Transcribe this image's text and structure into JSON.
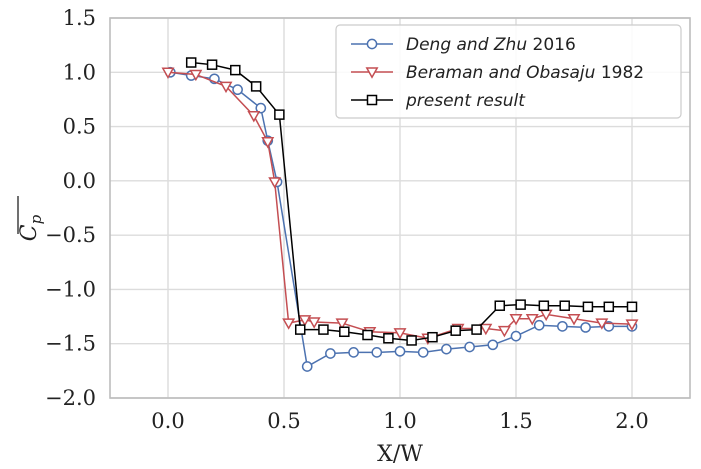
{
  "chart_data": {
    "type": "line",
    "xlabel": "X/W",
    "ylabel_base": "C",
    "ylabel_sub": "p",
    "xlim": [
      -0.25,
      2.25
    ],
    "ylim": [
      -2.0,
      1.5
    ],
    "xticks": [
      0.0,
      0.5,
      1.0,
      1.5,
      2.0
    ],
    "xtick_labels": [
      "0.0",
      "0.5",
      "1.0",
      "1.5",
      "2.0"
    ],
    "yticks": [
      1.5,
      1.0,
      0.5,
      0.0,
      -0.5,
      -1.0,
      -1.5,
      -2.0
    ],
    "ytick_labels": [
      "1.5",
      "1.0",
      "0.5",
      "0.0",
      "−0.5",
      "−1.0",
      "−1.5",
      "−2.0"
    ],
    "grid": true,
    "legend_position": "top-right",
    "series": [
      {
        "legend_italic": "Deng and Zhu",
        "legend_plain": " 2016",
        "color": "#4c72b0",
        "marker": "circle",
        "x": [
          0.01,
          0.1,
          0.2,
          0.3,
          0.4,
          0.43,
          0.47,
          0.6,
          0.7,
          0.8,
          0.9,
          1.0,
          1.1,
          1.2,
          1.3,
          1.4,
          1.5,
          1.6,
          1.7,
          1.8,
          1.9,
          2.0
        ],
        "y": [
          1.0,
          0.97,
          0.94,
          0.84,
          0.67,
          0.37,
          -0.01,
          -1.71,
          -1.59,
          -1.58,
          -1.58,
          -1.57,
          -1.58,
          -1.55,
          -1.53,
          -1.51,
          -1.43,
          -1.33,
          -1.34,
          -1.35,
          -1.34,
          -1.34
        ]
      },
      {
        "legend_italic": "Beraman and Obasaju",
        "legend_plain": " 1982",
        "color": "#c44e52",
        "marker": "triangle-down",
        "x": [
          0.0,
          0.12,
          0.25,
          0.37,
          0.43,
          0.46,
          0.52,
          0.59,
          0.63,
          0.75,
          0.87,
          1.0,
          1.12,
          1.25,
          1.37,
          1.45,
          1.5,
          1.57,
          1.63,
          1.75,
          1.87,
          2.0
        ],
        "y": [
          1.0,
          0.98,
          0.87,
          0.6,
          0.36,
          -0.01,
          -1.31,
          -1.28,
          -1.3,
          -1.31,
          -1.39,
          -1.4,
          -1.45,
          -1.36,
          -1.36,
          -1.38,
          -1.27,
          -1.27,
          -1.23,
          -1.27,
          -1.31,
          -1.32
        ]
      },
      {
        "legend_italic": "present result",
        "legend_plain": "",
        "color": "#000000",
        "marker": "square",
        "x": [
          0.1,
          0.19,
          0.29,
          0.38,
          0.48,
          0.57,
          0.67,
          0.76,
          0.86,
          0.95,
          1.05,
          1.14,
          1.24,
          1.33,
          1.43,
          1.52,
          1.62,
          1.71,
          1.81,
          1.9,
          2.0
        ],
        "y": [
          1.09,
          1.07,
          1.02,
          0.87,
          0.61,
          -1.37,
          -1.37,
          -1.39,
          -1.42,
          -1.45,
          -1.47,
          -1.44,
          -1.38,
          -1.37,
          -1.15,
          -1.14,
          -1.15,
          -1.15,
          -1.16,
          -1.16,
          -1.16
        ]
      }
    ]
  }
}
